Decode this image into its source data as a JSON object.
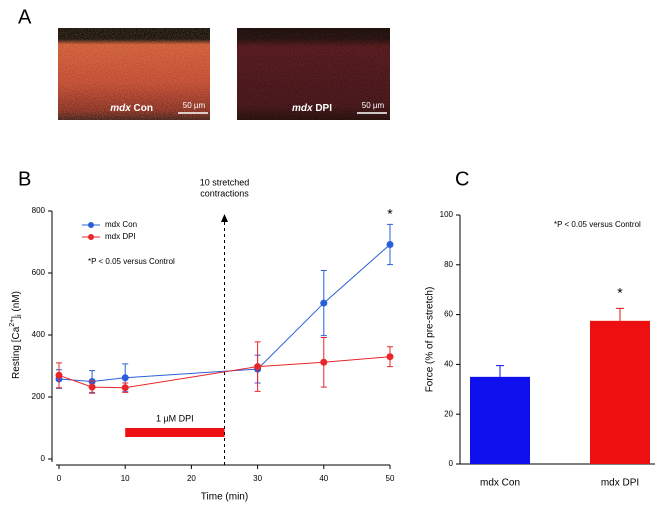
{
  "panel_labels": [
    "A",
    "B",
    "C"
  ],
  "images": [
    {
      "label_italic": "mdx",
      "label": "Con",
      "scale_bar": "50 µm"
    },
    {
      "label_italic": "mdx",
      "label": "DPI",
      "scale_bar": "50 µm"
    }
  ],
  "chart_data": [
    {
      "type": "line",
      "xlabel": "Time (min)",
      "ylabel": [
        {
          "text": "Resting [Ca"
        },
        {
          "text": "2+",
          "style": "sup"
        },
        {
          "text": "]"
        },
        {
          "text": "i",
          "style": "sub"
        },
        {
          "text": " (nM)"
        }
      ],
      "x": [
        0,
        5,
        10,
        30,
        40,
        50
      ],
      "xlim": [
        0,
        50
      ],
      "xticks": [
        0,
        10,
        20,
        30,
        40,
        50
      ],
      "ylim": [
        0,
        800
      ],
      "yticks": [
        0,
        200,
        400,
        600,
        800
      ],
      "series": [
        {
          "name": "mdx Con",
          "color": "#2b5fd9",
          "values": [
            258,
            250,
            262,
            290,
            503,
            692
          ],
          "errors": [
            30,
            35,
            45,
            45,
            105,
            65
          ]
        },
        {
          "name": "mdx DPI",
          "color": "#e8262a",
          "values": [
            270,
            232,
            230,
            298,
            312,
            330
          ],
          "errors": [
            40,
            20,
            15,
            80,
            80,
            32
          ]
        }
      ],
      "annotation": [
        "10 stretched",
        "contractions"
      ],
      "treatment": {
        "label": "1 µM DPI",
        "start": 10,
        "end": 25,
        "color": "#ee1111"
      },
      "significance": {
        "x": 50,
        "label": "*"
      },
      "note": "*P < 0.05 versus Control"
    },
    {
      "type": "bar",
      "ylabel": "Force (% of pre-stretch)",
      "categories": [
        "mdx Con",
        "mdx DPI"
      ],
      "values": [
        35,
        57.5
      ],
      "errors": [
        4.5,
        5
      ],
      "colors": [
        "#1010ee",
        "#ee1010"
      ],
      "ylim": [
        0,
        100
      ],
      "yticks": [
        0,
        20,
        40,
        60,
        80,
        100
      ],
      "significance": {
        "category": 1,
        "label": "*"
      },
      "note": "*P < 0.05 versus Control"
    }
  ]
}
